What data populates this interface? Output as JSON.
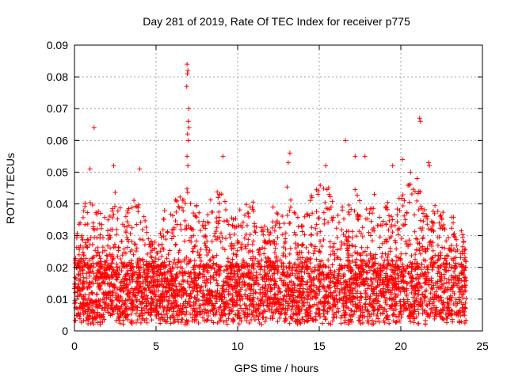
{
  "chart_data": {
    "type": "scatter",
    "title": "Day 281 of 2019, Rate Of TEC Index for receiver p775",
    "xlabel": "GPS time / hours",
    "ylabel": "ROTI / TECUs",
    "xlim": [
      0,
      25
    ],
    "ylim": [
      0,
      0.09
    ],
    "xticks": [
      "0",
      "5",
      "10",
      "15",
      "20",
      "25"
    ],
    "yticks": [
      "0",
      "0.01",
      "0.02",
      "0.03",
      "0.04",
      "0.05",
      "0.06",
      "0.07",
      "0.08",
      "0.09"
    ],
    "grid": true,
    "marker": "+",
    "series": [
      {
        "name": "ROTI",
        "color": "#ff0000",
        "points": [
          [
            1.2,
            0.064
          ],
          [
            0.95,
            0.051
          ],
          [
            2.4,
            0.052
          ],
          [
            4.0,
            0.051
          ],
          [
            6.9,
            0.084
          ],
          [
            6.95,
            0.082
          ],
          [
            6.92,
            0.081
          ],
          [
            6.88,
            0.077
          ],
          [
            7.0,
            0.07
          ],
          [
            6.97,
            0.066
          ],
          [
            7.02,
            0.064
          ],
          [
            6.93,
            0.062
          ],
          [
            6.98,
            0.06
          ],
          [
            6.9,
            0.055
          ],
          [
            6.95,
            0.052
          ],
          [
            9.1,
            0.055
          ],
          [
            13.2,
            0.056
          ],
          [
            13.1,
            0.053
          ],
          [
            16.6,
            0.06
          ],
          [
            17.2,
            0.055
          ],
          [
            17.8,
            0.055
          ],
          [
            15.4,
            0.052
          ],
          [
            19.5,
            0.052
          ],
          [
            20.1,
            0.054
          ],
          [
            21.15,
            0.067
          ],
          [
            21.2,
            0.066
          ],
          [
            21.7,
            0.053
          ],
          [
            21.75,
            0.052
          ],
          [
            20.6,
            0.05
          ],
          [
            21.0,
            0.048
          ]
        ],
        "envelope": [
          [
            0.0,
            0.03
          ],
          [
            0.5,
            0.038
          ],
          [
            1.0,
            0.046
          ],
          [
            1.5,
            0.04
          ],
          [
            2.0,
            0.034
          ],
          [
            2.5,
            0.045
          ],
          [
            3.0,
            0.036
          ],
          [
            3.5,
            0.04
          ],
          [
            4.0,
            0.046
          ],
          [
            4.5,
            0.03
          ],
          [
            5.0,
            0.028
          ],
          [
            5.5,
            0.038
          ],
          [
            6.0,
            0.04
          ],
          [
            6.5,
            0.044
          ],
          [
            7.0,
            0.048
          ],
          [
            7.5,
            0.04
          ],
          [
            8.0,
            0.038
          ],
          [
            8.5,
            0.044
          ],
          [
            9.0,
            0.044
          ],
          [
            9.5,
            0.04
          ],
          [
            10.0,
            0.036
          ],
          [
            10.5,
            0.046
          ],
          [
            11.0,
            0.04
          ],
          [
            11.5,
            0.034
          ],
          [
            12.0,
            0.038
          ],
          [
            12.5,
            0.042
          ],
          [
            13.0,
            0.046
          ],
          [
            13.5,
            0.04
          ],
          [
            14.0,
            0.038
          ],
          [
            14.5,
            0.044
          ],
          [
            15.0,
            0.046
          ],
          [
            15.5,
            0.048
          ],
          [
            16.0,
            0.042
          ],
          [
            16.5,
            0.044
          ],
          [
            17.0,
            0.048
          ],
          [
            17.5,
            0.044
          ],
          [
            18.0,
            0.038
          ],
          [
            18.5,
            0.045
          ],
          [
            19.0,
            0.042
          ],
          [
            19.5,
            0.04
          ],
          [
            20.0,
            0.044
          ],
          [
            20.5,
            0.048
          ],
          [
            21.0,
            0.045
          ],
          [
            21.5,
            0.042
          ],
          [
            22.0,
            0.04
          ],
          [
            22.5,
            0.038
          ],
          [
            23.0,
            0.042
          ],
          [
            23.5,
            0.034
          ],
          [
            24.0,
            0.03
          ]
        ],
        "baseline_range": [
          0.003,
          0.02
        ]
      }
    ]
  }
}
